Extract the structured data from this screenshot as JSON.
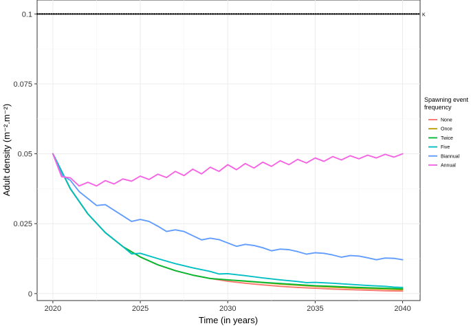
{
  "chart_data": {
    "type": "line",
    "title": "",
    "xlabel": "Time (in years)",
    "ylabel": "Adult density (m⁻².m⁻²)",
    "xlim": [
      2019.1,
      2041.0
    ],
    "ylim": [
      -0.0025,
      0.105
    ],
    "x_ticks": [
      "2020",
      "2025",
      "2030",
      "2035",
      "2040"
    ],
    "y_ticks": [
      "0",
      "0.025",
      "0.05",
      "0.075",
      "0.1"
    ],
    "grid": true,
    "legend": {
      "title_lines": [
        "Spawning event",
        "frequency"
      ],
      "position": "right"
    },
    "reference_line": {
      "label": "K",
      "y": 0.1,
      "style": "dotted",
      "color": "#000000"
    },
    "series": [
      {
        "name": "None",
        "color": "#F8766D",
        "x": [
          2020,
          2021,
          2022,
          2023,
          2024,
          2025,
          2026,
          2027,
          2028,
          2029,
          2030,
          2031,
          2032,
          2033,
          2034,
          2035,
          2036,
          2037,
          2038,
          2039,
          2040
        ],
        "y": [
          0.05,
          0.0375,
          0.0285,
          0.0218,
          0.0168,
          0.0131,
          0.0103,
          0.0082,
          0.0066,
          0.0054,
          0.0044,
          0.0037,
          0.0031,
          0.0026,
          0.0022,
          0.0019,
          0.0016,
          0.0014,
          0.0012,
          0.001,
          0.0009
        ]
      },
      {
        "name": "Once",
        "color": "#B79F00",
        "x": [
          2020,
          2021,
          2022,
          2023,
          2024,
          2025,
          2026,
          2027,
          2028,
          2029,
          2030,
          2031,
          2032,
          2033,
          2034,
          2035,
          2036,
          2037,
          2038,
          2039,
          2040
        ],
        "y": [
          0.05,
          0.0375,
          0.0285,
          0.0218,
          0.0168,
          0.0131,
          0.0103,
          0.0082,
          0.0066,
          0.0054,
          0.0049,
          0.0044,
          0.0039,
          0.0034,
          0.003,
          0.0026,
          0.0023,
          0.002,
          0.0018,
          0.0016,
          0.0014
        ]
      },
      {
        "name": "Twice",
        "color": "#00BA38",
        "x": [
          2020,
          2021,
          2022,
          2023,
          2024,
          2025,
          2026,
          2027,
          2028,
          2029,
          2030,
          2031,
          2032,
          2033,
          2034,
          2035,
          2036,
          2037,
          2038,
          2039,
          2040
        ],
        "y": [
          0.05,
          0.0375,
          0.0285,
          0.0218,
          0.0168,
          0.0131,
          0.0103,
          0.0082,
          0.0066,
          0.0054,
          0.0049,
          0.0045,
          0.004,
          0.0036,
          0.0032,
          0.0028,
          0.0026,
          0.0023,
          0.0021,
          0.0019,
          0.0017
        ]
      },
      {
        "name": "Five",
        "color": "#00BFC4",
        "x": [
          2020,
          2021,
          2022,
          2023,
          2024,
          2024.5,
          2025,
          2026,
          2027,
          2028,
          2029,
          2029.5,
          2030,
          2031,
          2032,
          2033,
          2034,
          2034.5,
          2035,
          2036,
          2037,
          2038,
          2039,
          2039.5,
          2040
        ],
        "y": [
          0.05,
          0.0375,
          0.0285,
          0.0218,
          0.0168,
          0.0142,
          0.0144,
          0.0125,
          0.0107,
          0.0092,
          0.0079,
          0.007,
          0.0071,
          0.0064,
          0.0056,
          0.0049,
          0.0043,
          0.0039,
          0.004,
          0.0037,
          0.0033,
          0.0029,
          0.0026,
          0.0023,
          0.0022
        ]
      },
      {
        "name": "Biannual",
        "color": "#619CFF",
        "x": [
          2020,
          2020.5,
          2021,
          2021.5,
          2022,
          2022.5,
          2023,
          2023.5,
          2024,
          2024.5,
          2025,
          2025.5,
          2026,
          2026.5,
          2027,
          2027.5,
          2028,
          2028.5,
          2029,
          2029.5,
          2030,
          2030.5,
          2031,
          2031.5,
          2032,
          2032.5,
          2033,
          2033.5,
          2034,
          2034.5,
          2035,
          2035.5,
          2036,
          2036.5,
          2037,
          2037.5,
          2038,
          2038.5,
          2039,
          2039.5,
          2040
        ],
        "y": [
          0.05,
          0.0425,
          0.0405,
          0.0365,
          0.034,
          0.0315,
          0.0318,
          0.0298,
          0.0278,
          0.0258,
          0.0265,
          0.0258,
          0.0241,
          0.0222,
          0.0228,
          0.0222,
          0.0207,
          0.0192,
          0.0198,
          0.0193,
          0.0181,
          0.0169,
          0.0176,
          0.0172,
          0.0164,
          0.0153,
          0.0159,
          0.0157,
          0.015,
          0.0141,
          0.0146,
          0.0144,
          0.0138,
          0.013,
          0.0136,
          0.0134,
          0.0128,
          0.0121,
          0.0127,
          0.0126,
          0.0121
        ]
      },
      {
        "name": "Annual",
        "color": "#F564E3",
        "x": [
          2020,
          2020.5,
          2021,
          2021.5,
          2022,
          2022.5,
          2023,
          2023.5,
          2024,
          2024.5,
          2025,
          2025.5,
          2026,
          2026.5,
          2027,
          2027.5,
          2028,
          2028.5,
          2029,
          2029.5,
          2030,
          2030.5,
          2031,
          2031.5,
          2032,
          2032.5,
          2033,
          2033.5,
          2034,
          2034.5,
          2035,
          2035.5,
          2036,
          2036.5,
          2037,
          2037.5,
          2038,
          2038.5,
          2039,
          2039.5,
          2040
        ],
        "y": [
          0.05,
          0.0418,
          0.0414,
          0.0385,
          0.0398,
          0.0385,
          0.0404,
          0.0392,
          0.041,
          0.0402,
          0.042,
          0.0408,
          0.0427,
          0.0415,
          0.0437,
          0.0422,
          0.0445,
          0.0428,
          0.0452,
          0.0437,
          0.0461,
          0.0443,
          0.0465,
          0.0449,
          0.047,
          0.0455,
          0.0475,
          0.0461,
          0.048,
          0.0467,
          0.0485,
          0.0473,
          0.049,
          0.0478,
          0.0493,
          0.0482,
          0.0495,
          0.0485,
          0.0498,
          0.0488,
          0.05
        ]
      }
    ]
  }
}
